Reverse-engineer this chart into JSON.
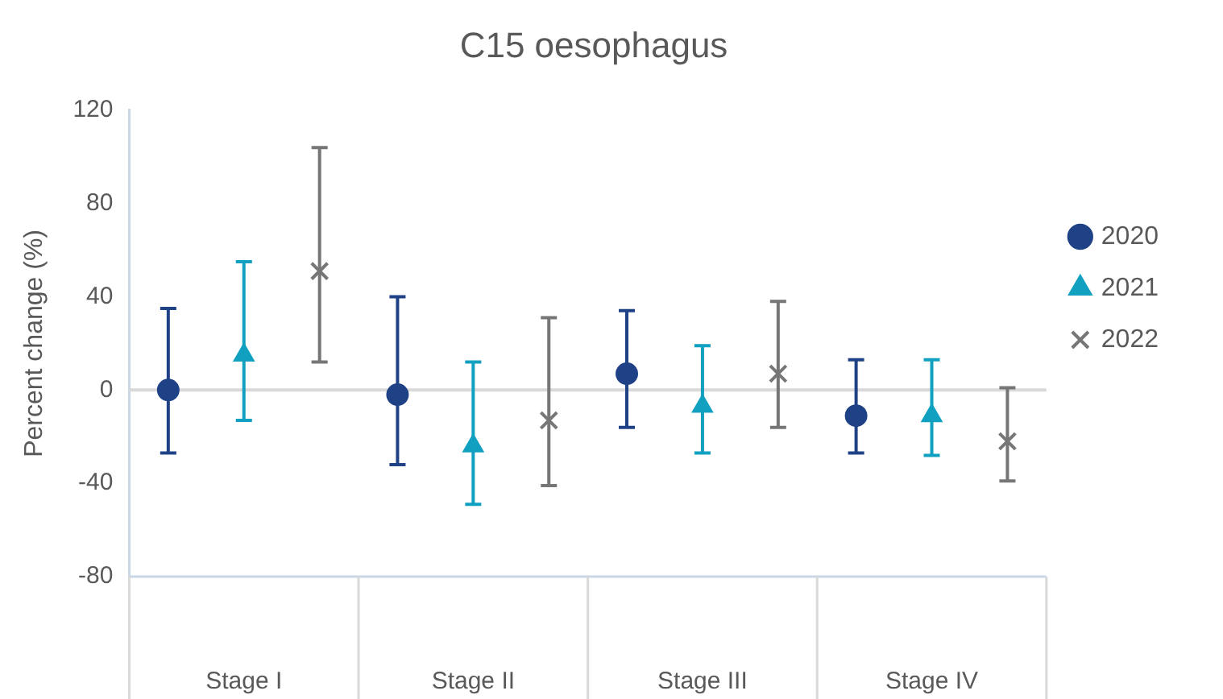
{
  "chart_data": {
    "type": "scatter",
    "title": "C15 oesophagus",
    "ylabel": "Percent change (%)",
    "categories": [
      "Stage I",
      "Stage II",
      "Stage III",
      "Stage IV"
    ],
    "ylim": [
      -80,
      120
    ],
    "yticks": [
      -80,
      -40,
      0,
      40,
      80,
      120
    ],
    "grid": false,
    "legend": "right",
    "ref_lines": [
      {
        "axis": "y",
        "value": 0,
        "color": "#d9d9d9"
      }
    ],
    "series": [
      {
        "name": "2020",
        "color": "#1f4287",
        "marker": "circle",
        "values": [
          0,
          -2,
          7,
          -11
        ],
        "errors": [
          [
            -27,
            35
          ],
          [
            -32,
            40
          ],
          [
            -16,
            34
          ],
          [
            -27,
            13
          ]
        ]
      },
      {
        "name": "2021",
        "color": "#12a0c0",
        "marker": "triangle",
        "values": [
          15,
          -24,
          -7,
          -11
        ],
        "errors": [
          [
            -13,
            55
          ],
          [
            -49,
            12
          ],
          [
            -27,
            19
          ],
          [
            -28,
            13
          ]
        ]
      },
      {
        "name": "2022",
        "color": "#767676",
        "marker": "cross",
        "values": [
          51,
          -13,
          7,
          -22
        ],
        "errors": [
          [
            12,
            104
          ],
          [
            -41,
            31
          ],
          [
            -16,
            38
          ],
          [
            -39,
            1
          ]
        ]
      }
    ]
  }
}
